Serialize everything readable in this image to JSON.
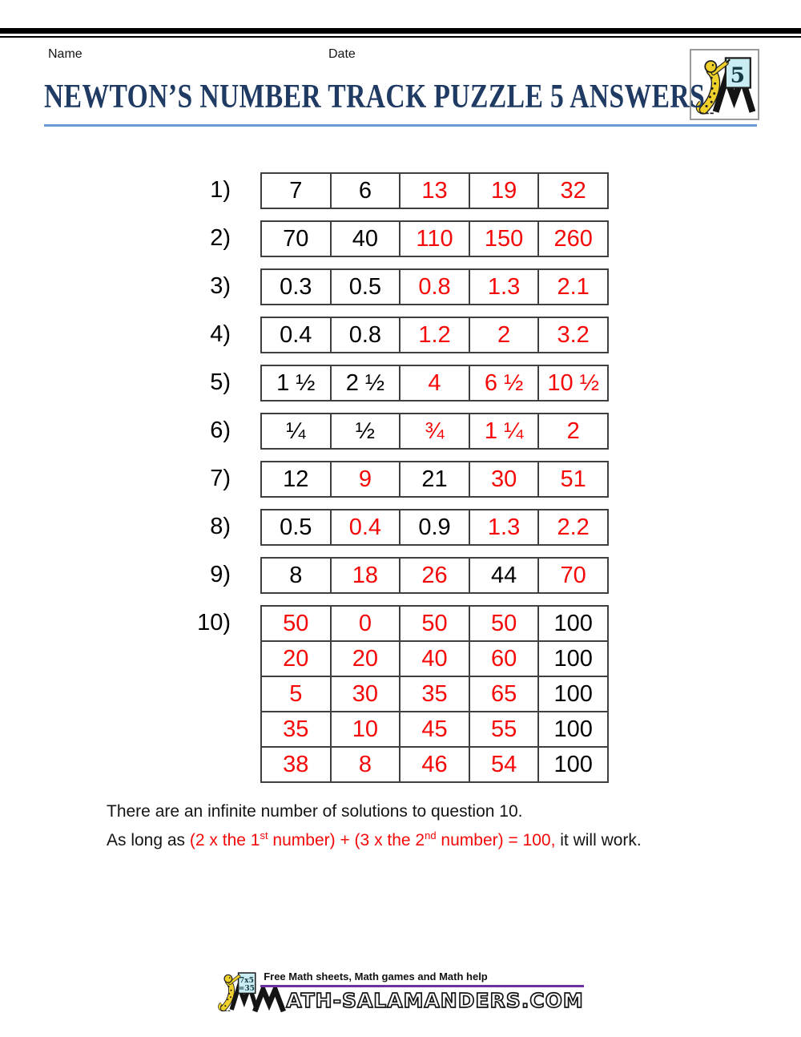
{
  "header": {
    "name_label": "Name",
    "date_label": "Date",
    "title": "NEWTON’S NUMBER TRACK PUZZLE 5 ANSWERS"
  },
  "corner_logo": {
    "number": "5"
  },
  "tracks": [
    {
      "label": "1)",
      "rows": [
        [
          {
            "v": "7",
            "red": false
          },
          {
            "v": "6",
            "red": false
          },
          {
            "v": "13",
            "red": true
          },
          {
            "v": "19",
            "red": true
          },
          {
            "v": "32",
            "red": true
          }
        ]
      ]
    },
    {
      "label": "2)",
      "rows": [
        [
          {
            "v": "70",
            "red": false
          },
          {
            "v": "40",
            "red": false
          },
          {
            "v": "110",
            "red": true
          },
          {
            "v": "150",
            "red": true
          },
          {
            "v": "260",
            "red": true
          }
        ]
      ]
    },
    {
      "label": "3)",
      "rows": [
        [
          {
            "v": "0.3",
            "red": false
          },
          {
            "v": "0.5",
            "red": false
          },
          {
            "v": "0.8",
            "red": true
          },
          {
            "v": "1.3",
            "red": true
          },
          {
            "v": "2.1",
            "red": true
          }
        ]
      ]
    },
    {
      "label": "4)",
      "rows": [
        [
          {
            "v": "0.4",
            "red": false
          },
          {
            "v": "0.8",
            "red": false
          },
          {
            "v": "1.2",
            "red": true
          },
          {
            "v": "2",
            "red": true
          },
          {
            "v": "3.2",
            "red": true
          }
        ]
      ]
    },
    {
      "label": "5)",
      "rows": [
        [
          {
            "v": "1 ½",
            "red": false
          },
          {
            "v": "2 ½",
            "red": false
          },
          {
            "v": "4",
            "red": true
          },
          {
            "v": "6 ½",
            "red": true
          },
          {
            "v": "10 ½",
            "red": true
          }
        ]
      ]
    },
    {
      "label": "6)",
      "rows": [
        [
          {
            "v": "¼",
            "red": false
          },
          {
            "v": "½",
            "red": false
          },
          {
            "v": "¾",
            "red": true
          },
          {
            "v": "1 ¼",
            "red": true
          },
          {
            "v": "2",
            "red": true
          }
        ]
      ]
    },
    {
      "label": "7)",
      "rows": [
        [
          {
            "v": "12",
            "red": false
          },
          {
            "v": "9",
            "red": true
          },
          {
            "v": "21",
            "red": false
          },
          {
            "v": "30",
            "red": true
          },
          {
            "v": "51",
            "red": true
          }
        ]
      ]
    },
    {
      "label": "8)",
      "rows": [
        [
          {
            "v": "0.5",
            "red": false
          },
          {
            "v": "0.4",
            "red": true
          },
          {
            "v": "0.9",
            "red": false
          },
          {
            "v": "1.3",
            "red": true
          },
          {
            "v": "2.2",
            "red": true
          }
        ]
      ]
    },
    {
      "label": "9)",
      "rows": [
        [
          {
            "v": "8",
            "red": false
          },
          {
            "v": "18",
            "red": true
          },
          {
            "v": "26",
            "red": true
          },
          {
            "v": "44",
            "red": false
          },
          {
            "v": "70",
            "red": true
          }
        ]
      ]
    },
    {
      "label": "10)",
      "rows": [
        [
          {
            "v": "50",
            "red": true
          },
          {
            "v": "0",
            "red": true
          },
          {
            "v": "50",
            "red": true
          },
          {
            "v": "50",
            "red": true
          },
          {
            "v": "100",
            "red": false
          }
        ],
        [
          {
            "v": "20",
            "red": true
          },
          {
            "v": "20",
            "red": true
          },
          {
            "v": "40",
            "red": true
          },
          {
            "v": "60",
            "red": true
          },
          {
            "v": "100",
            "red": false
          }
        ],
        [
          {
            "v": "5",
            "red": true
          },
          {
            "v": "30",
            "red": true
          },
          {
            "v": "35",
            "red": true
          },
          {
            "v": "65",
            "red": true
          },
          {
            "v": "100",
            "red": false
          }
        ],
        [
          {
            "v": "35",
            "red": true
          },
          {
            "v": "10",
            "red": true
          },
          {
            "v": "45",
            "red": true
          },
          {
            "v": "55",
            "red": true
          },
          {
            "v": "100",
            "red": false
          }
        ],
        [
          {
            "v": "38",
            "red": true
          },
          {
            "v": "8",
            "red": true
          },
          {
            "v": "46",
            "red": true
          },
          {
            "v": "54",
            "red": true
          },
          {
            "v": "100",
            "red": false
          }
        ]
      ]
    }
  ],
  "footnote": {
    "line1": "There are an infinite number of solutions to question 10.",
    "line2_parts": [
      {
        "text": "As long as ",
        "red": false
      },
      {
        "text": "(2 x the 1",
        "red": true
      },
      {
        "text": "st",
        "red": true,
        "sup": true
      },
      {
        "text": " number) + (3 x the 2",
        "red": true
      },
      {
        "text": "nd",
        "red": true,
        "sup": true
      },
      {
        "text": " number) = 100,",
        "red": true
      },
      {
        "text": " it will work.",
        "red": false
      }
    ]
  },
  "footer": {
    "tagline": "Free Math sheets, Math games and Math help",
    "wordmark": "ATH-SALAMANDERS.COM",
    "card_line1": "7x5",
    "card_line2": "=35"
  },
  "colors": {
    "red": "#f40808",
    "navy": "#1f3a63",
    "rule_blue": "#6b9ad2",
    "purple": "#7030a0",
    "card_cyan": "#c9edf2",
    "salamander_yellow": "#f0d02a",
    "cell_border": "#3f3f3f"
  }
}
